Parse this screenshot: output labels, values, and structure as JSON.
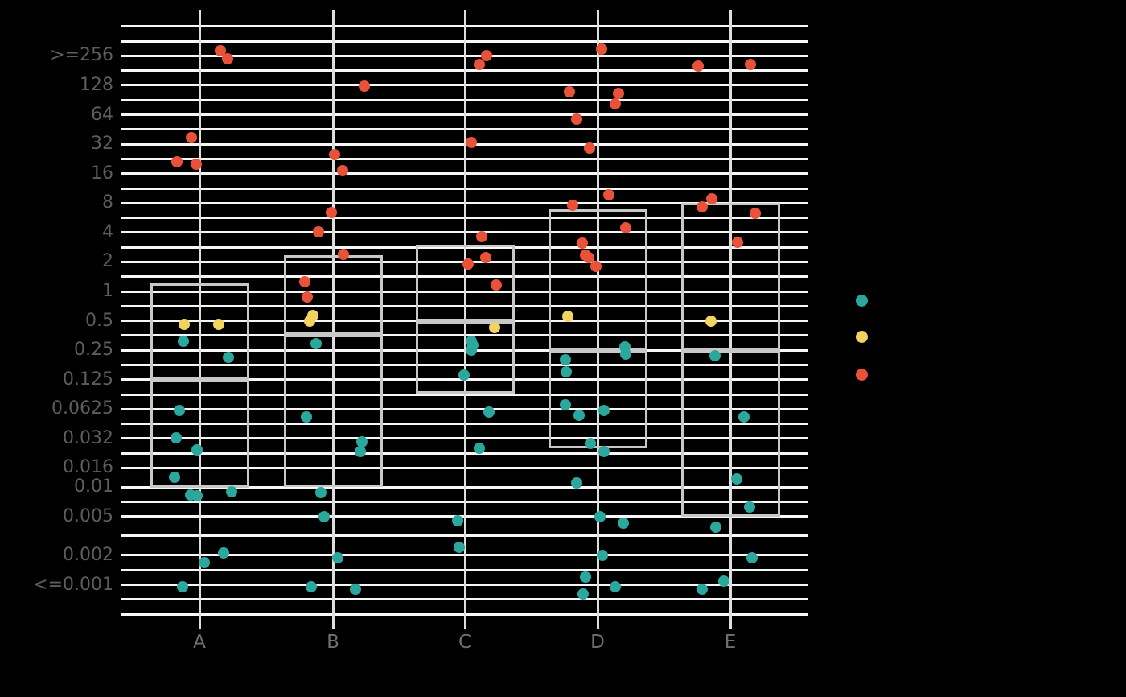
{
  "chart_data": {
    "type": "scatter",
    "title": "",
    "categories": [
      "A",
      "B",
      "C",
      "D",
      "E"
    ],
    "x_tick_labels": [
      "A",
      "B",
      "C",
      "D",
      "E"
    ],
    "y_axis": {
      "scale": "log2",
      "tick_labels": [
        ">=256",
        "128",
        "64",
        "32",
        "16",
        "8",
        "4",
        "2",
        "1",
        "0.5",
        "0.25",
        "0.125",
        "0.0625",
        "0.032",
        "0.016",
        "0.01",
        "0.005",
        "0.002",
        "<=0.001"
      ],
      "tick_values": [
        256,
        128,
        64,
        32,
        16,
        8,
        4,
        2,
        1,
        0.5,
        0.25,
        0.125,
        0.0625,
        0.03125,
        0.015625,
        0.01,
        0.005,
        0.002,
        0.001
      ],
      "grid_values": [
        512,
        362,
        256,
        181,
        128,
        90.5,
        64,
        45.3,
        32,
        22.6,
        16,
        11.3,
        8,
        5.66,
        4,
        2.83,
        2,
        1.414,
        1,
        0.707,
        0.5,
        0.354,
        0.25,
        0.177,
        0.125,
        0.0884,
        0.0625,
        0.0442,
        0.03125,
        0.0221,
        0.015625,
        0.01,
        0.00707,
        0.005,
        0.00316,
        0.002,
        0.00141,
        0.001,
        0.000707,
        0.0005
      ],
      "top_label": ">=256",
      "bottom_label": "<=0.001"
    },
    "grid": true,
    "boxes": [
      {
        "category": "A",
        "high": 1.2,
        "low": 0.0098,
        "median": 0.125
      },
      {
        "category": "B",
        "high": 2.35,
        "low": 0.01,
        "median": 0.36
      },
      {
        "category": "C",
        "high": 3.0,
        "low": 0.09,
        "median": 0.5
      },
      {
        "category": "D",
        "high": 6.9,
        "low": 0.025,
        "median": 0.25
      },
      {
        "category": "E",
        "high": 8.0,
        "low": 0.005,
        "median": 0.25
      }
    ],
    "series": [
      {
        "name": "series-teal",
        "color": "#2BA79E",
        "points": [
          {
            "c": "A",
            "v": 0.31,
            "dx": -20
          },
          {
            "c": "A",
            "v": 0.21,
            "dx": 36
          },
          {
            "c": "A",
            "v": 0.06,
            "dx": -25
          },
          {
            "c": "A",
            "v": 0.032,
            "dx": -29
          },
          {
            "c": "A",
            "v": 0.024,
            "dx": -3
          },
          {
            "c": "A",
            "v": 0.0125,
            "dx": -31
          },
          {
            "c": "A",
            "v": 0.0083,
            "dx": -11
          },
          {
            "c": "A",
            "v": 0.0082,
            "dx": -3
          },
          {
            "c": "A",
            "v": 0.0089,
            "dx": 40
          },
          {
            "c": "A",
            "v": 0.0021,
            "dx": 30
          },
          {
            "c": "A",
            "v": 0.0017,
            "dx": 6
          },
          {
            "c": "A",
            "v": 0.00095,
            "dx": -21
          },
          {
            "c": "B",
            "v": 0.29,
            "dx": -21
          },
          {
            "c": "B",
            "v": 0.052,
            "dx": -33
          },
          {
            "c": "B",
            "v": 0.029,
            "dx": 36
          },
          {
            "c": "B",
            "v": 0.023,
            "dx": 34
          },
          {
            "c": "B",
            "v": 0.0088,
            "dx": -15
          },
          {
            "c": "B",
            "v": 0.005,
            "dx": -11
          },
          {
            "c": "B",
            "v": 0.0019,
            "dx": 6
          },
          {
            "c": "B",
            "v": 0.00095,
            "dx": -27
          },
          {
            "c": "B",
            "v": 0.0009,
            "dx": 28
          },
          {
            "c": "C",
            "v": 0.31,
            "dx": 8
          },
          {
            "c": "C",
            "v": 0.28,
            "dx": 10
          },
          {
            "c": "C",
            "v": 0.25,
            "dx": 8
          },
          {
            "c": "C",
            "v": 0.14,
            "dx": -1
          },
          {
            "c": "C",
            "v": 0.058,
            "dx": 30
          },
          {
            "c": "C",
            "v": 0.025,
            "dx": 18
          },
          {
            "c": "C",
            "v": 0.0045,
            "dx": -9
          },
          {
            "c": "C",
            "v": 0.0024,
            "dx": -7
          },
          {
            "c": "D",
            "v": 0.27,
            "dx": 34
          },
          {
            "c": "D",
            "v": 0.23,
            "dx": 35
          },
          {
            "c": "D",
            "v": 0.2,
            "dx": -40
          },
          {
            "c": "D",
            "v": 0.15,
            "dx": -39
          },
          {
            "c": "D",
            "v": 0.069,
            "dx": -40
          },
          {
            "c": "D",
            "v": 0.06,
            "dx": 8
          },
          {
            "c": "D",
            "v": 0.054,
            "dx": -23
          },
          {
            "c": "D",
            "v": 0.028,
            "dx": -9
          },
          {
            "c": "D",
            "v": 0.023,
            "dx": 8
          },
          {
            "c": "D",
            "v": 0.011,
            "dx": -26
          },
          {
            "c": "D",
            "v": 0.005,
            "dx": 3
          },
          {
            "c": "D",
            "v": 0.0043,
            "dx": 32
          },
          {
            "c": "D",
            "v": 0.002,
            "dx": 6
          },
          {
            "c": "D",
            "v": 0.0012,
            "dx": -15
          },
          {
            "c": "D",
            "v": 0.00095,
            "dx": 22
          },
          {
            "c": "D",
            "v": 0.0008,
            "dx": -18
          },
          {
            "c": "E",
            "v": 0.22,
            "dx": -19
          },
          {
            "c": "E",
            "v": 0.052,
            "dx": 17
          },
          {
            "c": "E",
            "v": 0.012,
            "dx": 8
          },
          {
            "c": "E",
            "v": 0.0062,
            "dx": 24
          },
          {
            "c": "E",
            "v": 0.0039,
            "dx": -18
          },
          {
            "c": "E",
            "v": 0.0019,
            "dx": 27
          },
          {
            "c": "E",
            "v": 0.0011,
            "dx": -8
          },
          {
            "c": "E",
            "v": 0.0009,
            "dx": -35
          }
        ]
      },
      {
        "name": "series-yellow",
        "color": "#F2D35E",
        "points": [
          {
            "c": "A",
            "v": 0.46,
            "dx": -19
          },
          {
            "c": "A",
            "v": 0.46,
            "dx": 24
          },
          {
            "c": "B",
            "v": 0.57,
            "dx": -25
          },
          {
            "c": "B",
            "v": 0.5,
            "dx": -29
          },
          {
            "c": "C",
            "v": 0.43,
            "dx": 37
          },
          {
            "c": "D",
            "v": 0.56,
            "dx": -37
          },
          {
            "c": "E",
            "v": 0.5,
            "dx": -24
          }
        ]
      },
      {
        "name": "series-red",
        "color": "#E85239",
        "points": [
          {
            "c": "A",
            "v": 290,
            "dx": 26
          },
          {
            "c": "A",
            "v": 240,
            "dx": 35
          },
          {
            "c": "A",
            "v": 37,
            "dx": -10
          },
          {
            "c": "A",
            "v": 21,
            "dx": -28
          },
          {
            "c": "A",
            "v": 20,
            "dx": -4
          },
          {
            "c": "B",
            "v": 125,
            "dx": 39
          },
          {
            "c": "B",
            "v": 25,
            "dx": 2
          },
          {
            "c": "B",
            "v": 17,
            "dx": 12
          },
          {
            "c": "B",
            "v": 6.4,
            "dx": -2
          },
          {
            "c": "B",
            "v": 4.1,
            "dx": -18
          },
          {
            "c": "B",
            "v": 2.4,
            "dx": 13
          },
          {
            "c": "B",
            "v": 1.26,
            "dx": -35
          },
          {
            "c": "B",
            "v": 0.88,
            "dx": -32
          },
          {
            "c": "C",
            "v": 260,
            "dx": 27
          },
          {
            "c": "C",
            "v": 210,
            "dx": 18
          },
          {
            "c": "C",
            "v": 33,
            "dx": 8
          },
          {
            "c": "C",
            "v": 3.6,
            "dx": 21
          },
          {
            "c": "C",
            "v": 2.2,
            "dx": 26
          },
          {
            "c": "C",
            "v": 1.9,
            "dx": 4
          },
          {
            "c": "C",
            "v": 1.16,
            "dx": 39
          },
          {
            "c": "D",
            "v": 300,
            "dx": 5
          },
          {
            "c": "D",
            "v": 110,
            "dx": -35
          },
          {
            "c": "D",
            "v": 105,
            "dx": 26
          },
          {
            "c": "D",
            "v": 83,
            "dx": 22
          },
          {
            "c": "D",
            "v": 58,
            "dx": -26
          },
          {
            "c": "D",
            "v": 29,
            "dx": -10
          },
          {
            "c": "D",
            "v": 9.7,
            "dx": 14
          },
          {
            "c": "D",
            "v": 7.6,
            "dx": -31
          },
          {
            "c": "D",
            "v": 4.5,
            "dx": 35
          },
          {
            "c": "D",
            "v": 3.1,
            "dx": -19
          },
          {
            "c": "D",
            "v": 2.35,
            "dx": -15
          },
          {
            "c": "D",
            "v": 2.2,
            "dx": -11
          },
          {
            "c": "D",
            "v": 1.8,
            "dx": -2
          },
          {
            "c": "E",
            "v": 200,
            "dx": -40
          },
          {
            "c": "E",
            "v": 210,
            "dx": 25
          },
          {
            "c": "E",
            "v": 8.8,
            "dx": -23
          },
          {
            "c": "E",
            "v": 7.3,
            "dx": -35
          },
          {
            "c": "E",
            "v": 6.3,
            "dx": 31
          },
          {
            "c": "E",
            "v": 3.2,
            "dx": 9
          }
        ]
      }
    ],
    "legend": {
      "position": "right",
      "labels_visible": false,
      "marker_colors": [
        "#2BA79E",
        "#F2D35E",
        "#E85239"
      ]
    }
  },
  "colors": {
    "background": "#000000",
    "gridline": "#f7f7f7",
    "category_line": "#dedede",
    "box_stroke": "#c8c8c8",
    "axis_text": "#5d5d5d",
    "teal": "#2BA79E",
    "yellow": "#F2D35E",
    "red": "#E85239"
  }
}
